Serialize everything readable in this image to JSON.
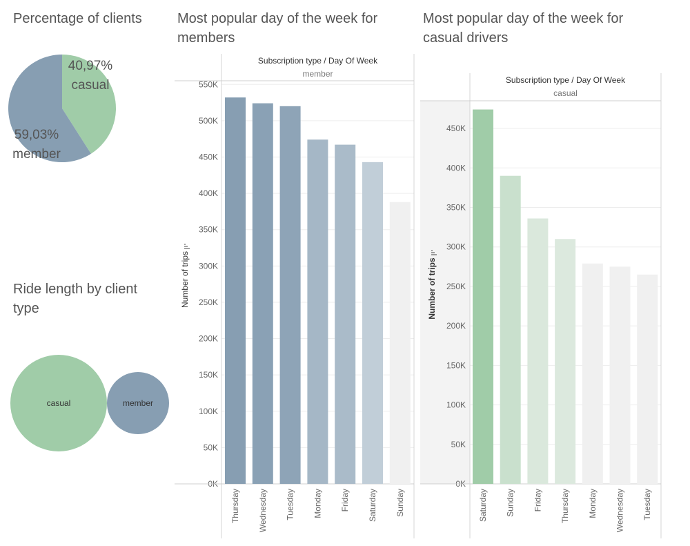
{
  "titles": {
    "pie": "Percentage of clients",
    "bubble": "Ride length by client type",
    "members": "Most popular day of the week for members",
    "casual": "Most popular day of the week for casual drivers"
  },
  "chart_data": [
    {
      "type": "pie",
      "title": "Percentage of clients",
      "slices": [
        {
          "name": "casual",
          "value": 40.97,
          "label": "40,97%",
          "color": "#a0cca8"
        },
        {
          "name": "member",
          "value": 59.03,
          "label": "59,03%",
          "color": "#879eb2"
        }
      ]
    },
    {
      "type": "bubble",
      "title": "Ride length by client type",
      "bubbles": [
        {
          "name": "casual",
          "color": "#a0cca8",
          "relative_size": 1.0
        },
        {
          "name": "member",
          "color": "#879eb2",
          "relative_size": 0.64
        }
      ]
    },
    {
      "type": "bar",
      "title": "Most popular day of the week for members",
      "header": "Subscription type / Day Of Week",
      "subheader": "member",
      "ylabel": "Number of trips",
      "ylim": [
        0,
        555000
      ],
      "yticks": [
        0,
        50000,
        100000,
        150000,
        200000,
        250000,
        300000,
        350000,
        400000,
        450000,
        500000,
        550000
      ],
      "ytick_labels": [
        "0K",
        "50K",
        "100K",
        "150K",
        "200K",
        "250K",
        "300K",
        "350K",
        "400K",
        "450K",
        "500K",
        "550K"
      ],
      "categories": [
        "Thursday",
        "Wednesday",
        "Tuesday",
        "Monday",
        "Friday",
        "Saturday",
        "Sunday"
      ],
      "values": [
        532000,
        524000,
        520000,
        474000,
        467000,
        443000,
        388000
      ],
      "colors": [
        "#879eb2",
        "#8aa1b5",
        "#8ea4b7",
        "#a5b7c6",
        "#aabbc9",
        "#c1ced8",
        "#f0f0f0"
      ]
    },
    {
      "type": "bar",
      "title": "Most popular day of the week for casual drivers",
      "header": "Subscription type / Day Of Week",
      "subheader": "casual",
      "ylabel": "Number of trips",
      "ylim": [
        0,
        485000
      ],
      "yticks": [
        0,
        50000,
        100000,
        150000,
        200000,
        250000,
        300000,
        350000,
        400000,
        450000
      ],
      "ytick_labels": [
        "0K",
        "50K",
        "100K",
        "150K",
        "200K",
        "250K",
        "300K",
        "350K",
        "400K",
        "450K"
      ],
      "categories": [
        "Saturday",
        "Sunday",
        "Friday",
        "Thursday",
        "Monday",
        "Wednesday",
        "Tuesday"
      ],
      "values": [
        474000,
        390000,
        336000,
        310000,
        279000,
        275000,
        265000
      ],
      "colors": [
        "#a0cca8",
        "#c9e0cd",
        "#dae8dc",
        "#dce9de",
        "#f0f0f0",
        "#f0f0f0",
        "#f0f0f0"
      ]
    }
  ]
}
